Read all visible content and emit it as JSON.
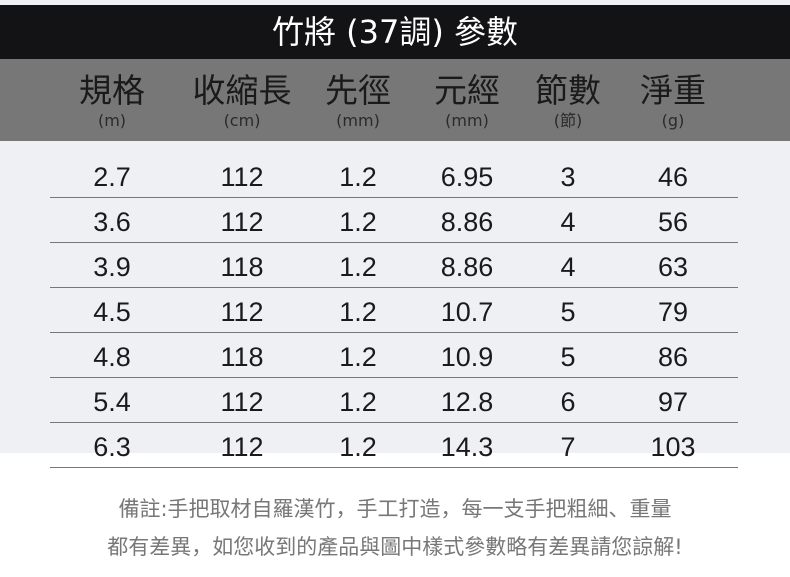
{
  "title": "竹將 (37調) 參數",
  "columns": [
    {
      "label": "規格",
      "unit": "(m)"
    },
    {
      "label": "收縮長",
      "unit": "(cm)"
    },
    {
      "label": "先徑",
      "unit": "(mm)"
    },
    {
      "label": "元經",
      "unit": "(mm)"
    },
    {
      "label": "節數",
      "unit": "(節)"
    },
    {
      "label": "淨重",
      "unit": "(g)"
    }
  ],
  "rows": [
    [
      "2.7",
      "112",
      "1.2",
      "6.95",
      "3",
      "46"
    ],
    [
      "3.6",
      "112",
      "1.2",
      "8.86",
      "4",
      "56"
    ],
    [
      "3.9",
      "118",
      "1.2",
      "8.86",
      "4",
      "63"
    ],
    [
      "4.5",
      "112",
      "1.2",
      "10.7",
      "5",
      "79"
    ],
    [
      "4.8",
      "118",
      "1.2",
      "10.9",
      "5",
      "86"
    ],
    [
      "5.4",
      "112",
      "1.2",
      "12.8",
      "6",
      "97"
    ],
    [
      "6.3",
      "112",
      "1.2",
      "14.3",
      "7",
      "103"
    ]
  ],
  "note": {
    "line1": "備註:手把取材自羅漢竹，手工打造，每一支手把粗細、重量",
    "line2": "都有差異，如您收到的產品與圖中樣式參數略有差異請您諒解!"
  }
}
